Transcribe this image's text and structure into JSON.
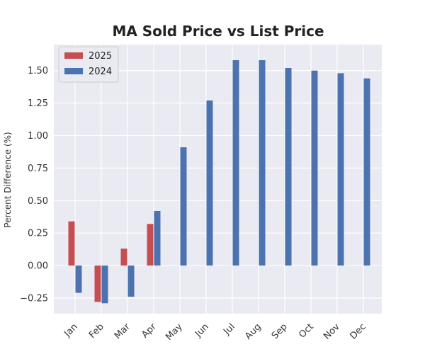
{
  "chart_data": {
    "type": "bar",
    "title": "MA Sold Price vs List Price",
    "xlabel": "",
    "ylabel": "Percent Difference (%)",
    "categories": [
      "Jan",
      "Feb",
      "Mar",
      "Apr",
      "May",
      "Jun",
      "Jul",
      "Aug",
      "Sep",
      "Oct",
      "Nov",
      "Dec"
    ],
    "series": [
      {
        "name": "2025",
        "color": "#c44e52",
        "values": [
          0.34,
          -0.28,
          0.13,
          0.32,
          null,
          null,
          null,
          null,
          null,
          null,
          null,
          null
        ]
      },
      {
        "name": "2024",
        "color": "#4c72b0",
        "values": [
          -0.21,
          -0.29,
          -0.24,
          0.42,
          0.91,
          1.27,
          1.58,
          1.58,
          1.52,
          1.5,
          1.48,
          1.44
        ]
      }
    ],
    "ylim": [
      -0.37,
      1.7
    ],
    "yticks": [
      -0.25,
      0.0,
      0.25,
      0.5,
      0.75,
      1.0,
      1.25,
      1.5
    ],
    "ytick_labels": [
      "−0.25",
      "0.00",
      "0.25",
      "0.50",
      "0.75",
      "1.00",
      "1.25",
      "1.50"
    ],
    "grid": true,
    "legend_position": "top-left",
    "background": "#eaeaf2"
  }
}
